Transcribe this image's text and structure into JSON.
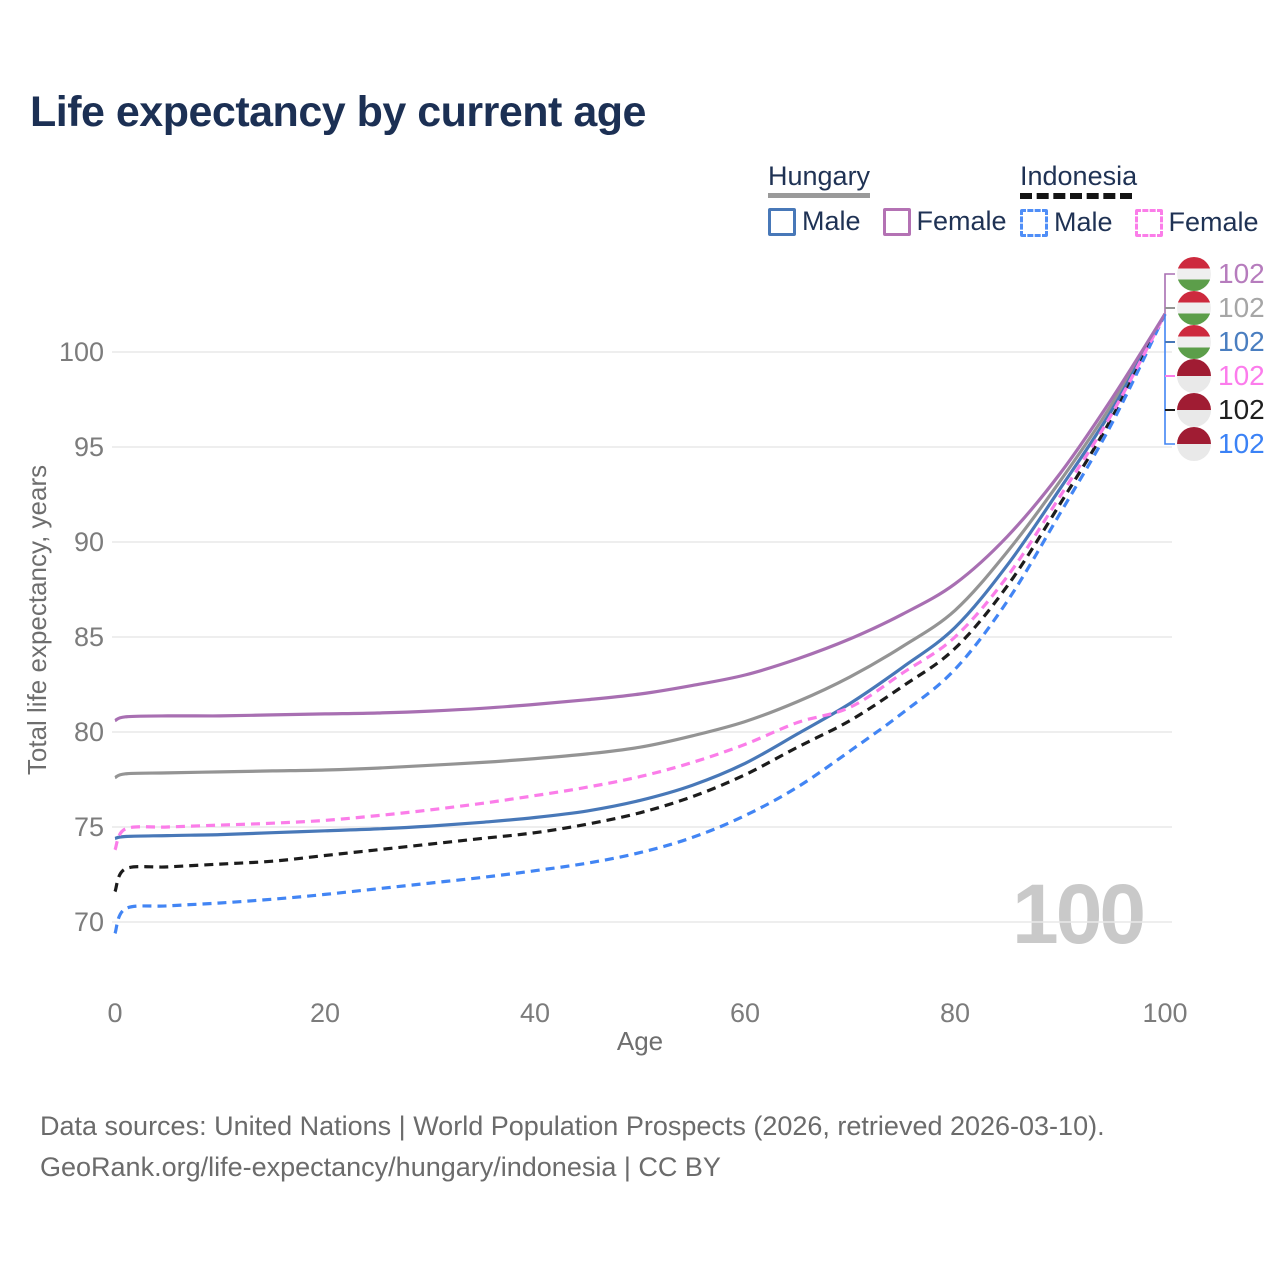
{
  "header": {
    "title": "Life expectancy by current age"
  },
  "legend": {
    "hungary": {
      "label": "Hungary",
      "male": "Male",
      "female": "Female"
    },
    "indonesia": {
      "label": "Indonesia",
      "male": "Male",
      "female": "Female"
    }
  },
  "colors": {
    "title_text": "#1c3054",
    "legend_text": "#1f3254",
    "axis_text": "#7c7c7c",
    "gridline": "#e9e9e9",
    "watermark": "#c9c9c9",
    "hungary_underline": "#9a9a9a",
    "indonesia_underline": "#141414",
    "hungary_male_swatch": "#4878b8",
    "hungary_female_swatch": "#b472b4",
    "indonesia_male_swatch": "#4f8ef7",
    "indonesia_female_swatch": "#fb7de9",
    "hungary_flag_bands": [
      "#cd2a3e",
      "#efefef",
      "#5c9e4a"
    ],
    "indonesia_flag_bands": [
      "#a01c33",
      "#e9e9e9"
    ]
  },
  "watermark": "100",
  "chart_data": {
    "type": "line",
    "title": "Life expectancy by current age",
    "xlabel": "Age",
    "ylabel": "Total life expectancy, years",
    "xlim": [
      0,
      100
    ],
    "ylim": [
      68,
      103
    ],
    "x_ticks": [
      0,
      20,
      40,
      60,
      80,
      100
    ],
    "y_ticks": [
      70,
      75,
      80,
      85,
      90,
      95,
      100
    ],
    "grid": "horizontal",
    "legend_position": "top-right",
    "x": [
      0,
      1,
      5,
      10,
      15,
      20,
      25,
      30,
      35,
      40,
      45,
      50,
      55,
      60,
      65,
      70,
      75,
      80,
      85,
      90,
      95,
      100
    ],
    "series": [
      {
        "name": "Hungary Female",
        "country": "Hungary",
        "sex": "Female",
        "line": "solid",
        "color": "#a86fb2",
        "label_color": "#b67cbd",
        "end_label": "102",
        "flag": "hungary",
        "values": [
          80.6,
          80.8,
          80.85,
          80.85,
          80.9,
          80.95,
          81.0,
          81.1,
          81.25,
          81.45,
          81.7,
          82.0,
          82.45,
          83.0,
          83.85,
          84.9,
          86.2,
          87.8,
          90.3,
          93.6,
          97.6,
          102
        ]
      },
      {
        "name": "Hungary Both sexes",
        "country": "Hungary",
        "sex": "Both sexes",
        "line": "solid",
        "color": "#949494",
        "label_color": "#a6a6a6",
        "end_label": "102",
        "flag": "hungary",
        "values": [
          77.6,
          77.8,
          77.85,
          77.9,
          77.95,
          78.0,
          78.1,
          78.25,
          78.4,
          78.6,
          78.85,
          79.2,
          79.8,
          80.55,
          81.6,
          82.9,
          84.5,
          86.4,
          89.5,
          93.2,
          97.3,
          102
        ]
      },
      {
        "name": "Hungary Male",
        "country": "Hungary",
        "sex": "Male",
        "line": "solid",
        "color": "#4878b8",
        "label_color": "#4a7ec0",
        "end_label": "102",
        "flag": "hungary",
        "values": [
          74.4,
          74.5,
          74.55,
          74.6,
          74.7,
          74.8,
          74.9,
          75.05,
          75.25,
          75.5,
          75.85,
          76.4,
          77.2,
          78.35,
          79.9,
          81.5,
          83.4,
          85.5,
          88.8,
          92.8,
          97.0,
          102
        ]
      },
      {
        "name": "Indonesia Female",
        "country": "Indonesia",
        "sex": "Female",
        "line": "dashed",
        "color": "#fb7de9",
        "label_color": "#fc7cec",
        "end_label": "102",
        "flag": "indonesia",
        "values": [
          73.8,
          74.9,
          75.0,
          75.1,
          75.2,
          75.35,
          75.6,
          75.9,
          76.25,
          76.65,
          77.1,
          77.65,
          78.4,
          79.35,
          80.5,
          81.3,
          83.1,
          85.0,
          88.2,
          92.4,
          96.8,
          102
        ]
      },
      {
        "name": "Indonesia Both sexes",
        "country": "Indonesia",
        "sex": "Both sexes",
        "line": "dashed",
        "color": "#1c1c1c",
        "label_color": "#1f1f1f",
        "end_label": "102",
        "flag": "indonesia",
        "values": [
          71.6,
          72.8,
          72.9,
          73.05,
          73.2,
          73.5,
          73.8,
          74.1,
          74.4,
          74.7,
          75.15,
          75.75,
          76.6,
          77.75,
          79.2,
          80.6,
          82.4,
          84.4,
          87.7,
          92.0,
          96.6,
          102
        ]
      },
      {
        "name": "Indonesia Male",
        "country": "Indonesia",
        "sex": "Male",
        "line": "dashed",
        "color": "#4285f4",
        "label_color": "#3b82f6",
        "end_label": "102",
        "flag": "indonesia",
        "values": [
          69.4,
          70.7,
          70.85,
          71.0,
          71.2,
          71.45,
          71.75,
          72.05,
          72.35,
          72.7,
          73.1,
          73.65,
          74.45,
          75.6,
          77.1,
          79.0,
          81.0,
          83.3,
          86.9,
          91.5,
          96.3,
          102
        ]
      }
    ]
  },
  "footer": {
    "line1": "Data sources: United Nations | World Population Prospects (2026, retrieved 2026-03-10).",
    "line2": "GeoRank.org/life-expectancy/hungary/indonesia | CC BY"
  }
}
